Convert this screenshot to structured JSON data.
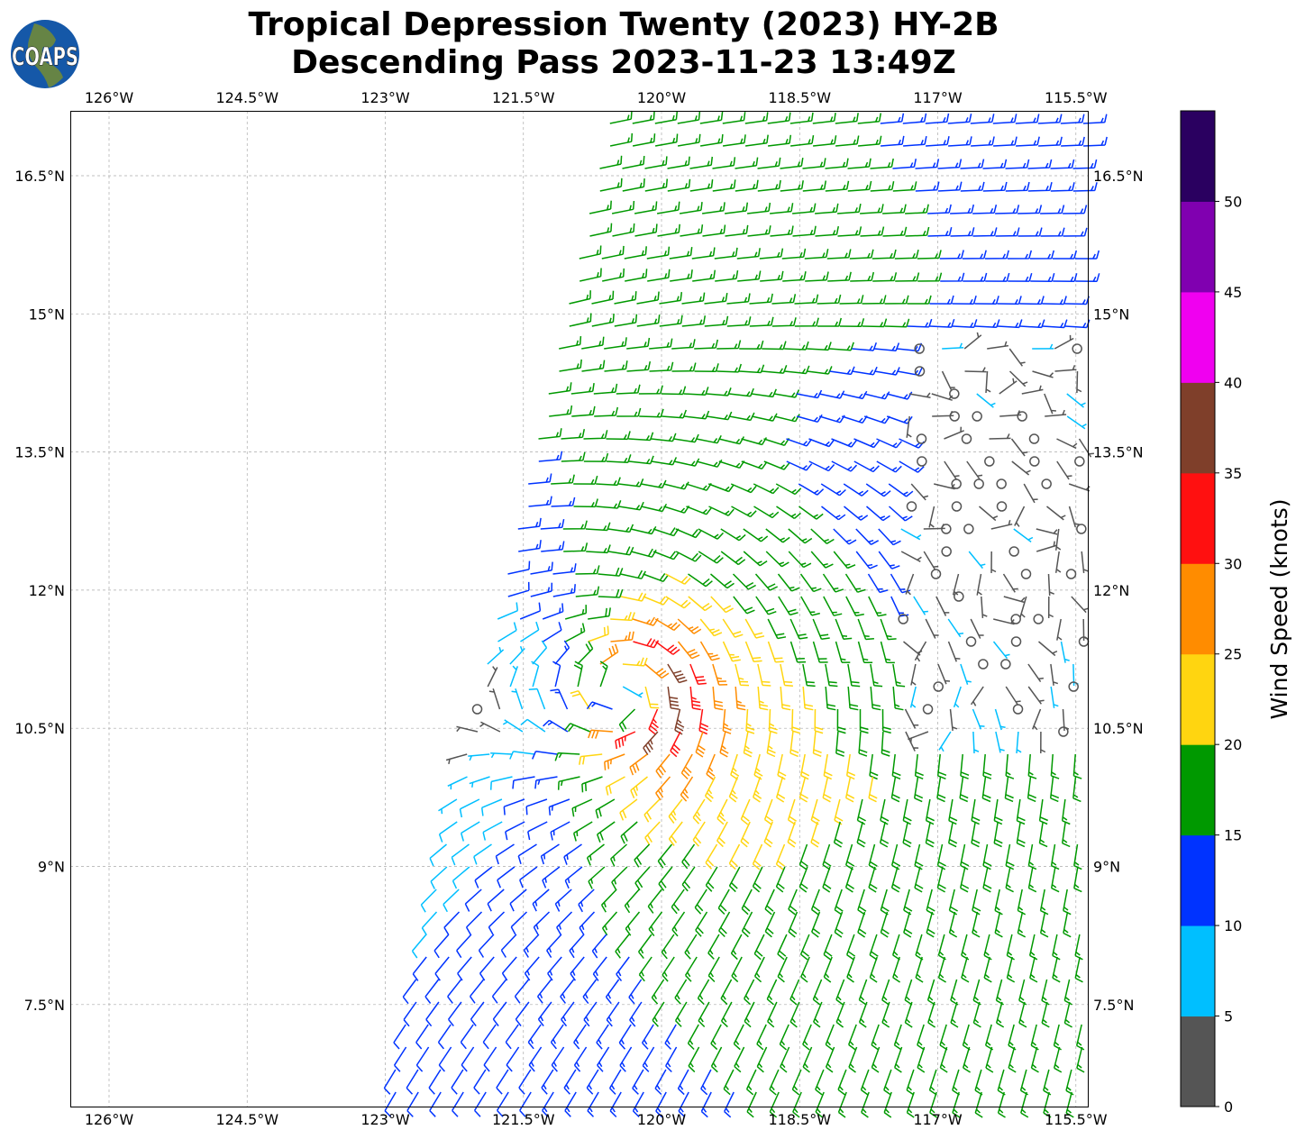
{
  "title": {
    "line1": "Tropical Depression Twenty (2023) HY-2B",
    "line2": "Descending Pass 2023-11-23 13:49Z"
  },
  "logo": {
    "text": "COAPS",
    "colors": {
      "ocean": "#1558a8",
      "land": "#6f8a3a"
    }
  },
  "axes": {
    "lon_ticks": [
      126,
      124.5,
      123,
      121.5,
      120,
      118.5,
      117,
      115.5
    ],
    "lon_labels": [
      "126°W",
      "124.5°W",
      "123°W",
      "121.5°W",
      "120°W",
      "118.5°W",
      "117°W",
      "115.5°W"
    ],
    "lat_ticks": [
      16.5,
      15,
      13.5,
      12,
      10.5,
      9,
      7.5
    ],
    "lat_labels": [
      "16.5°N",
      "15°N",
      "13.5°N",
      "12°N",
      "10.5°N",
      "9°N",
      "7.5°N"
    ],
    "lon_range_west": [
      126.42,
      115.37
    ],
    "lat_range": [
      6.39,
      17.2
    ],
    "grid": true
  },
  "colorbar": {
    "label": "Wind Speed (knots)",
    "ticks": [
      "0",
      "5",
      "10",
      "15",
      "20",
      "25",
      "30",
      "35",
      "40",
      "45",
      "50"
    ],
    "bounds": [
      0,
      5,
      10,
      15,
      20,
      25,
      30,
      35,
      40,
      45,
      50,
      55
    ],
    "colors": [
      "#555555",
      "#00bfff",
      "#0033ff",
      "#009900",
      "#ffd510",
      "#ff8c00",
      "#ff1010",
      "#7f3f2a",
      "#f000f0",
      "#8000b0",
      "#2a0060"
    ]
  },
  "chart_data": {
    "type": "wind-barbs",
    "units": "knots",
    "storm_center": {
      "lon_west": 120.33,
      "lat": 10.9
    },
    "max_wind": 32,
    "radius_max_wind_deg": 0.45,
    "ambient_north": {
      "u": -11,
      "v": -3
    },
    "ambient_south": {
      "u": 1,
      "v": 12
    },
    "calm_region": {
      "lon_west": [
        115.37,
        117.4
      ],
      "lat": [
        10.3,
        14.8
      ]
    },
    "swath_west_edge": [
      {
        "lon_west": 120.53,
        "lat": 17.2
      },
      {
        "lon_west": 122.98,
        "lat": 6.39
      }
    ]
  }
}
